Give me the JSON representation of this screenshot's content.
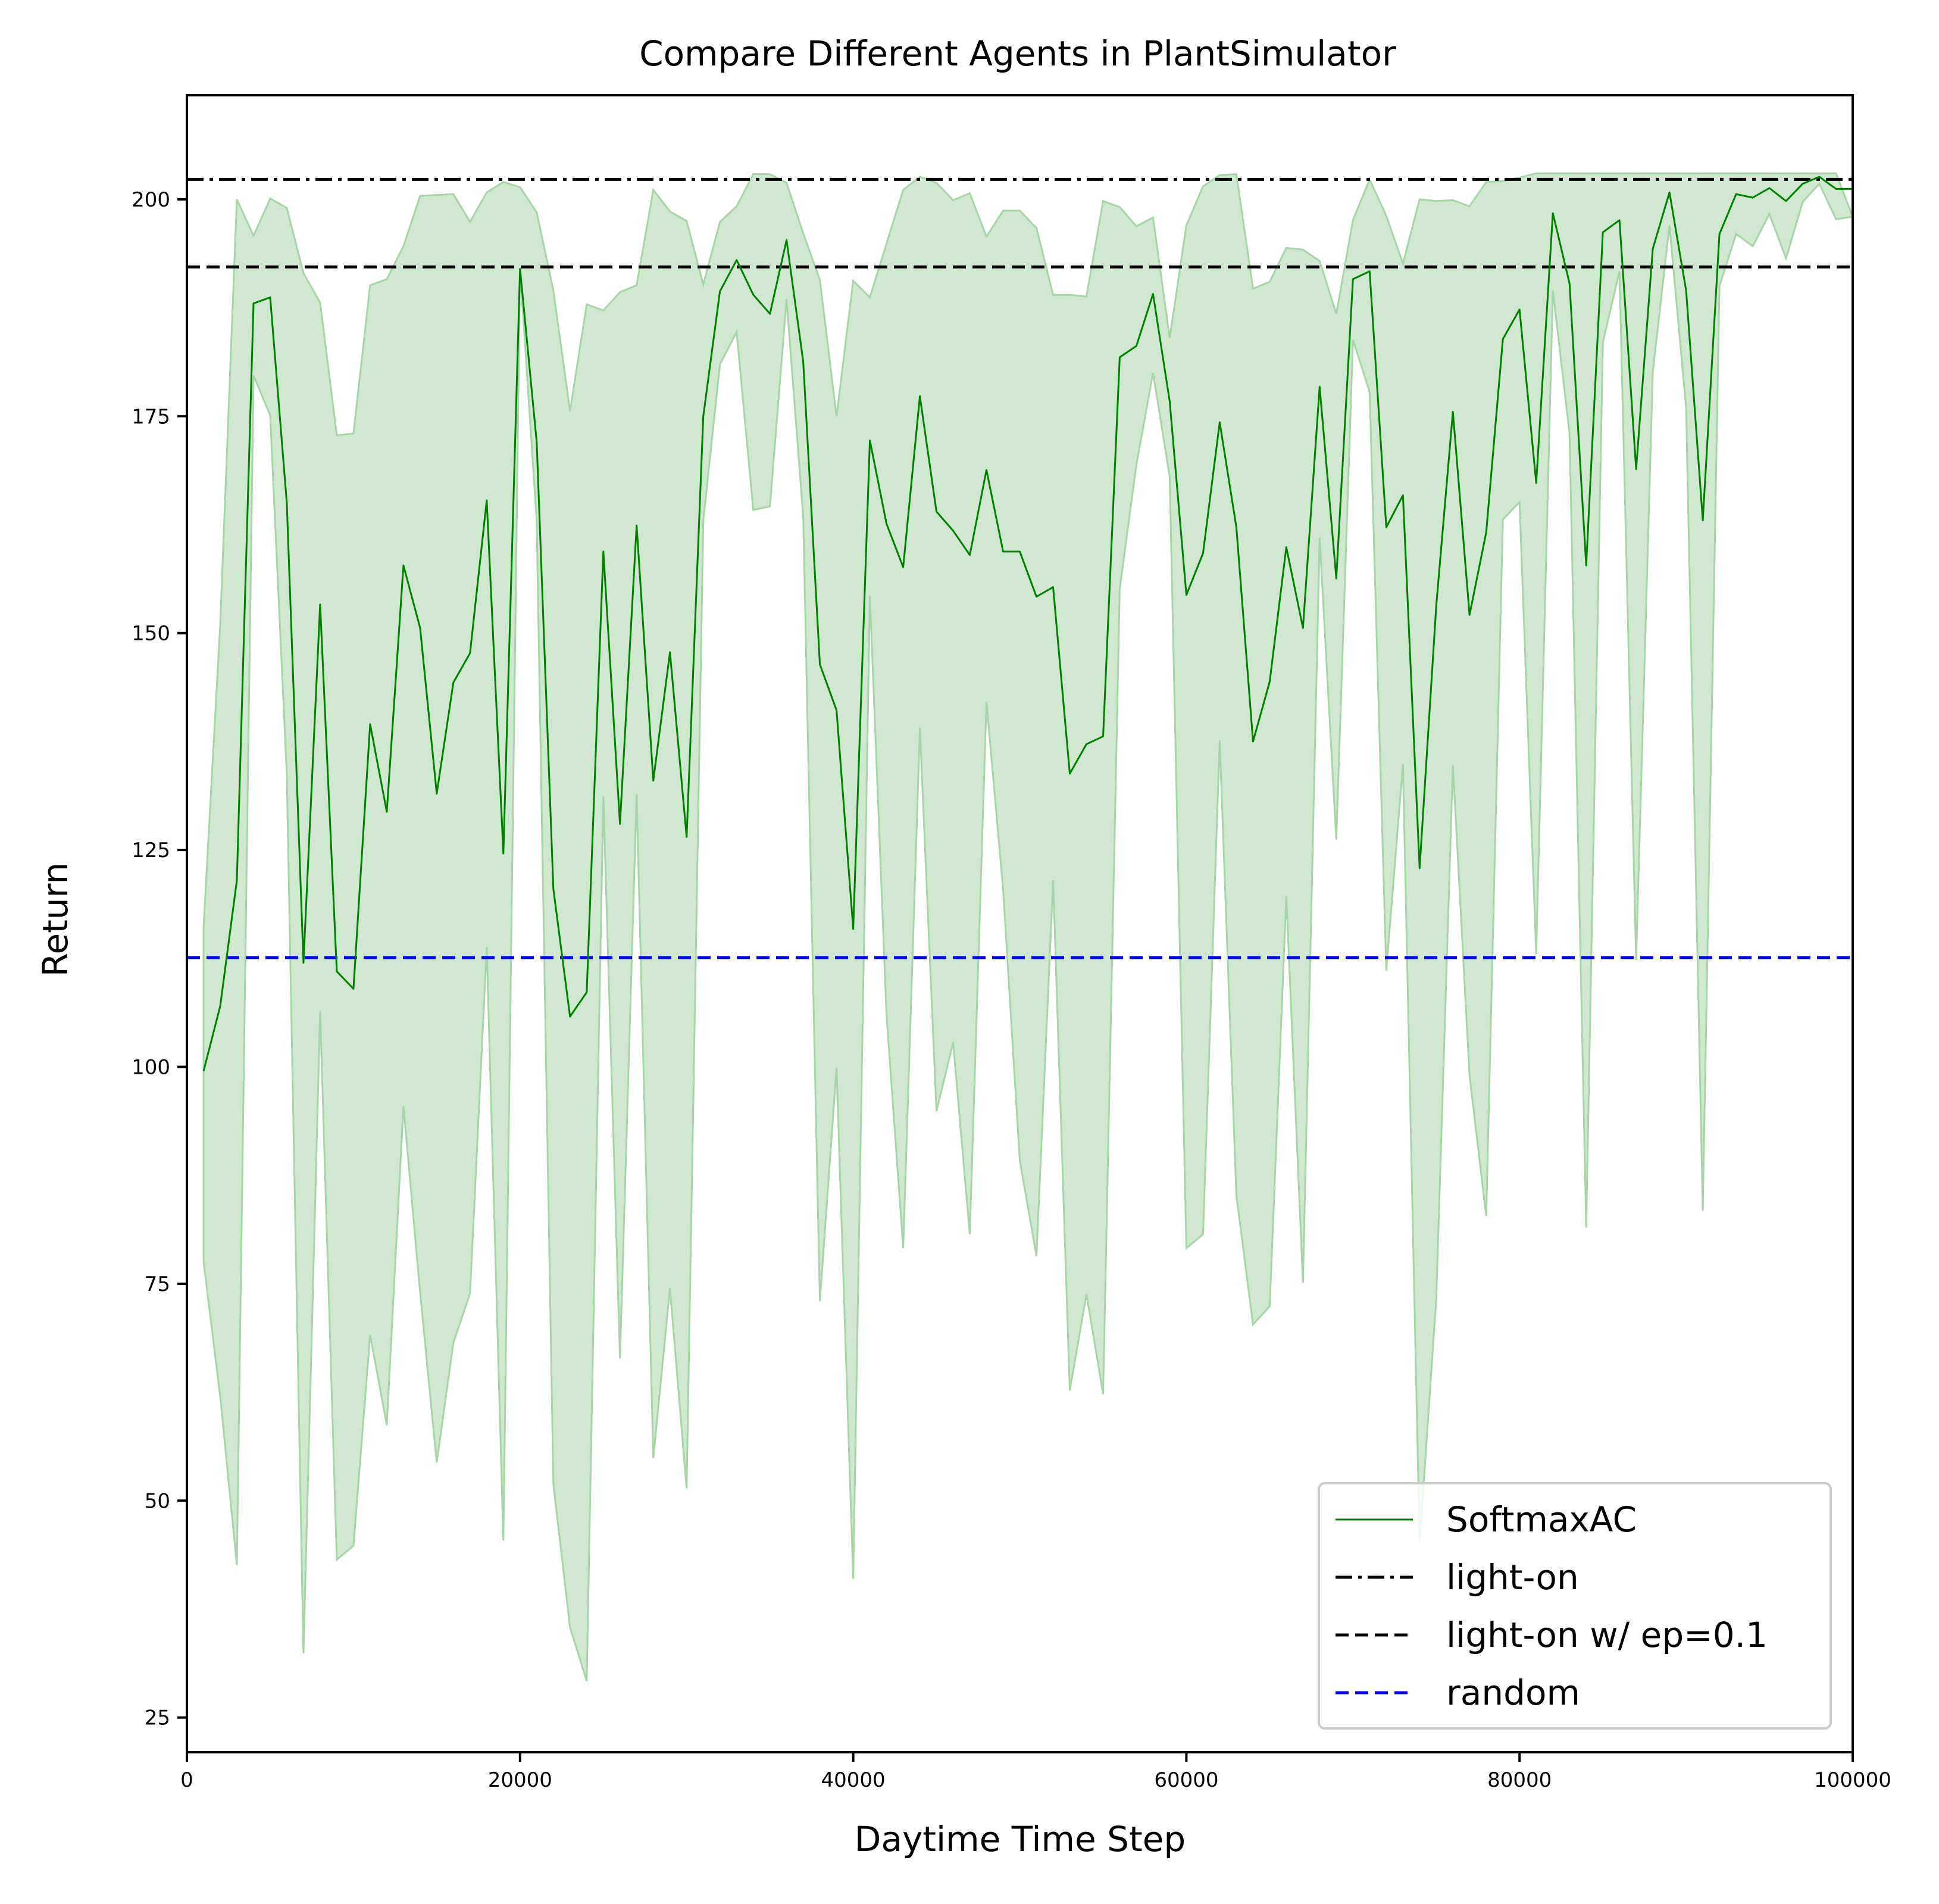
{
  "chart_data": {
    "type": "line",
    "title": "Compare Different Agents in PlantSimulator",
    "xlabel": "Daytime Time Step",
    "ylabel": "Return",
    "xlim": [
      0,
      100000
    ],
    "ylim": [
      21,
      212
    ],
    "xticks": [
      0,
      20000,
      40000,
      60000,
      80000,
      100000
    ],
    "yticks": [
      25,
      50,
      75,
      100,
      125,
      150,
      175,
      200
    ],
    "grid": false,
    "legend_position": "bottom-right",
    "colors": {
      "softmax": "#008000",
      "band": "#a8d5a8",
      "light_on": "#000000",
      "light_on_ep": "#000000",
      "random": "#0000ff"
    },
    "series": [
      {
        "name": "SoftmaxAC",
        "style": "solid",
        "x": [
          1000,
          2000,
          3000,
          4000,
          5000,
          6000,
          7000,
          8000,
          9000,
          10000,
          11000,
          12000,
          13000,
          14000,
          15000,
          16000,
          17000,
          18000,
          19000,
          20000,
          21000,
          22000,
          23000,
          24000,
          25000,
          26000,
          27000,
          28000,
          29000,
          30000,
          31000,
          32000,
          33000,
          34000,
          35000,
          36000,
          37000,
          38000,
          39000,
          40000,
          41000,
          42000,
          43000,
          44000,
          45000,
          46000,
          47000,
          48000,
          49000,
          50000,
          51000,
          52000,
          53000,
          54000,
          55000,
          56000,
          57000,
          58000,
          59000,
          60000,
          61000,
          62000,
          63000,
          64000,
          65000,
          66000,
          67000,
          68000,
          69000,
          70000,
          71000,
          72000,
          73000,
          74000,
          75000,
          76000,
          77000,
          78000,
          79000,
          80000,
          81000,
          82000,
          83000,
          84000,
          85000,
          86000,
          87000,
          88000,
          89000,
          90000,
          91000,
          92000,
          93000,
          94000,
          95000,
          96000,
          97000,
          98000,
          99000,
          100000
        ],
        "y": [
          99.5,
          107,
          121.5,
          188,
          188.7,
          165,
          112,
          153.3,
          111,
          109,
          139.5,
          129.4,
          157.8,
          150.6,
          131.5,
          144.3,
          147.7,
          165.3,
          124.6,
          192,
          172,
          120.5,
          105.8,
          108.6,
          159.4,
          128,
          162.4,
          133,
          147.8,
          126.5,
          175,
          189.4,
          193,
          189,
          186.8,
          195.3,
          181.3,
          146.4,
          141.1,
          115.9,
          172.2,
          162.6,
          157.6,
          177.3,
          164,
          161.8,
          159,
          168.8,
          159.4,
          159.4,
          154.2,
          155.3,
          133.8,
          137.2,
          138.1,
          181.8,
          183.1,
          189.1,
          176.7,
          154.4,
          159.2,
          174.3,
          162.2,
          137.5,
          144.4,
          159.9,
          150.6,
          178.4,
          156.3,
          190.8,
          191.7,
          162.2,
          165.9,
          122.9,
          153.2,
          175.5,
          152.1,
          161.6,
          183.9,
          187.3,
          167.3,
          198.4,
          190.3,
          157.8,
          196.2,
          197.6,
          168.9,
          194.3,
          200.8,
          189.5,
          163,
          196,
          200.6,
          200.2,
          201.3,
          199.8,
          201.8,
          202.6,
          201.2,
          201.2
        ]
      },
      {
        "name": "light-on",
        "style": "dashdot",
        "y": 202.3
      },
      {
        "name": "light-on w/ ep=0.1",
        "style": "dashed",
        "y": 192.2
      },
      {
        "name": "random",
        "style": "dashed",
        "y": 112.6
      }
    ],
    "band": {
      "x": [
        1000,
        2000,
        3000,
        4000,
        5000,
        6000,
        7000,
        8000,
        9000,
        10000,
        11000,
        12000,
        13000,
        14000,
        15000,
        16000,
        17000,
        18000,
        19000,
        20000,
        21000,
        22000,
        23000,
        24000,
        25000,
        26000,
        27000,
        28000,
        29000,
        30000,
        31000,
        32000,
        33000,
        34000,
        35000,
        36000,
        37000,
        38000,
        39000,
        40000,
        41000,
        42000,
        43000,
        44000,
        45000,
        46000,
        47000,
        48000,
        49000,
        50000,
        51000,
        52000,
        53000,
        54000,
        55000,
        56000,
        57000,
        58000,
        59000,
        60000,
        61000,
        62000,
        63000,
        64000,
        65000,
        66000,
        67000,
        68000,
        69000,
        70000,
        71000,
        72000,
        73000,
        74000,
        75000,
        76000,
        77000,
        78000,
        79000,
        80000,
        81000,
        82000,
        83000,
        84000,
        85000,
        86000,
        87000,
        88000,
        89000,
        90000,
        91000,
        92000,
        93000,
        94000,
        95000,
        96000,
        97000,
        98000,
        99000,
        100000
      ],
      "upper": [
        116,
        151,
        200,
        195.8,
        200.1,
        199,
        191.5,
        188.1,
        172.8,
        173,
        190.1,
        190.8,
        194.6,
        200.4,
        200.5,
        200.6,
        197.4,
        200.8,
        202,
        201.4,
        198.5,
        189.5,
        175.6,
        187.9,
        187.2,
        189.3,
        190.1,
        201.1,
        198.6,
        197.5,
        190.2,
        197.4,
        199.2,
        202.9,
        202.9,
        201.9,
        196.1,
        190.7,
        175,
        190.6,
        188.7,
        194.9,
        201.1,
        202.6,
        201.9,
        199.9,
        200.7,
        195.7,
        198.7,
        198.7,
        196.7,
        189,
        189,
        188.8,
        199.8,
        199.1,
        196.9,
        197.9,
        184,
        197,
        201.5,
        202.8,
        202.9,
        189.7,
        190.5,
        194.4,
        194.2,
        192.9,
        186.8,
        197.6,
        202.3,
        198.1,
        192.6,
        200,
        199.8,
        199.9,
        199.2,
        202,
        202.1,
        202.5,
        203,
        203,
        203,
        203,
        203,
        203,
        203,
        203,
        203,
        203,
        203,
        203,
        203,
        203,
        203,
        203,
        203,
        203,
        203,
        198
      ],
      "lower": [
        77.6,
        62,
        42.6,
        179.7,
        175.1,
        133.7,
        32.4,
        106.4,
        43.2,
        44.8,
        69.1,
        58.7,
        95.5,
        74,
        54.4,
        68.2,
        73.9,
        113.8,
        45.4,
        192,
        162.9,
        51.9,
        35.4,
        29.2,
        131.2,
        66.4,
        131.4,
        54.9,
        74.5,
        51.4,
        163,
        181,
        184.7,
        164.2,
        164.6,
        188.5,
        163.4,
        73,
        99.9,
        41,
        154.3,
        106,
        79.1,
        139.1,
        94.9,
        102.8,
        80.7,
        142.1,
        120.5,
        89.2,
        78.2,
        121.5,
        62.7,
        73.8,
        62.3,
        155.1,
        169.4,
        180,
        168,
        79.1,
        80.7,
        137.6,
        85.2,
        70.3,
        72.4,
        119.7,
        75.1,
        161,
        126.2,
        183.8,
        177.8,
        111.1,
        134.9,
        45.1,
        73.3,
        134.8,
        99,
        82.8,
        163.1,
        165.1,
        113,
        189.5,
        173,
        81.5,
        183.5,
        191.7,
        112.3,
        180.1,
        197,
        176,
        83.4,
        190,
        196,
        194.6,
        198.3,
        193.2,
        199.7,
        201.8,
        197.7,
        198
      ]
    }
  }
}
